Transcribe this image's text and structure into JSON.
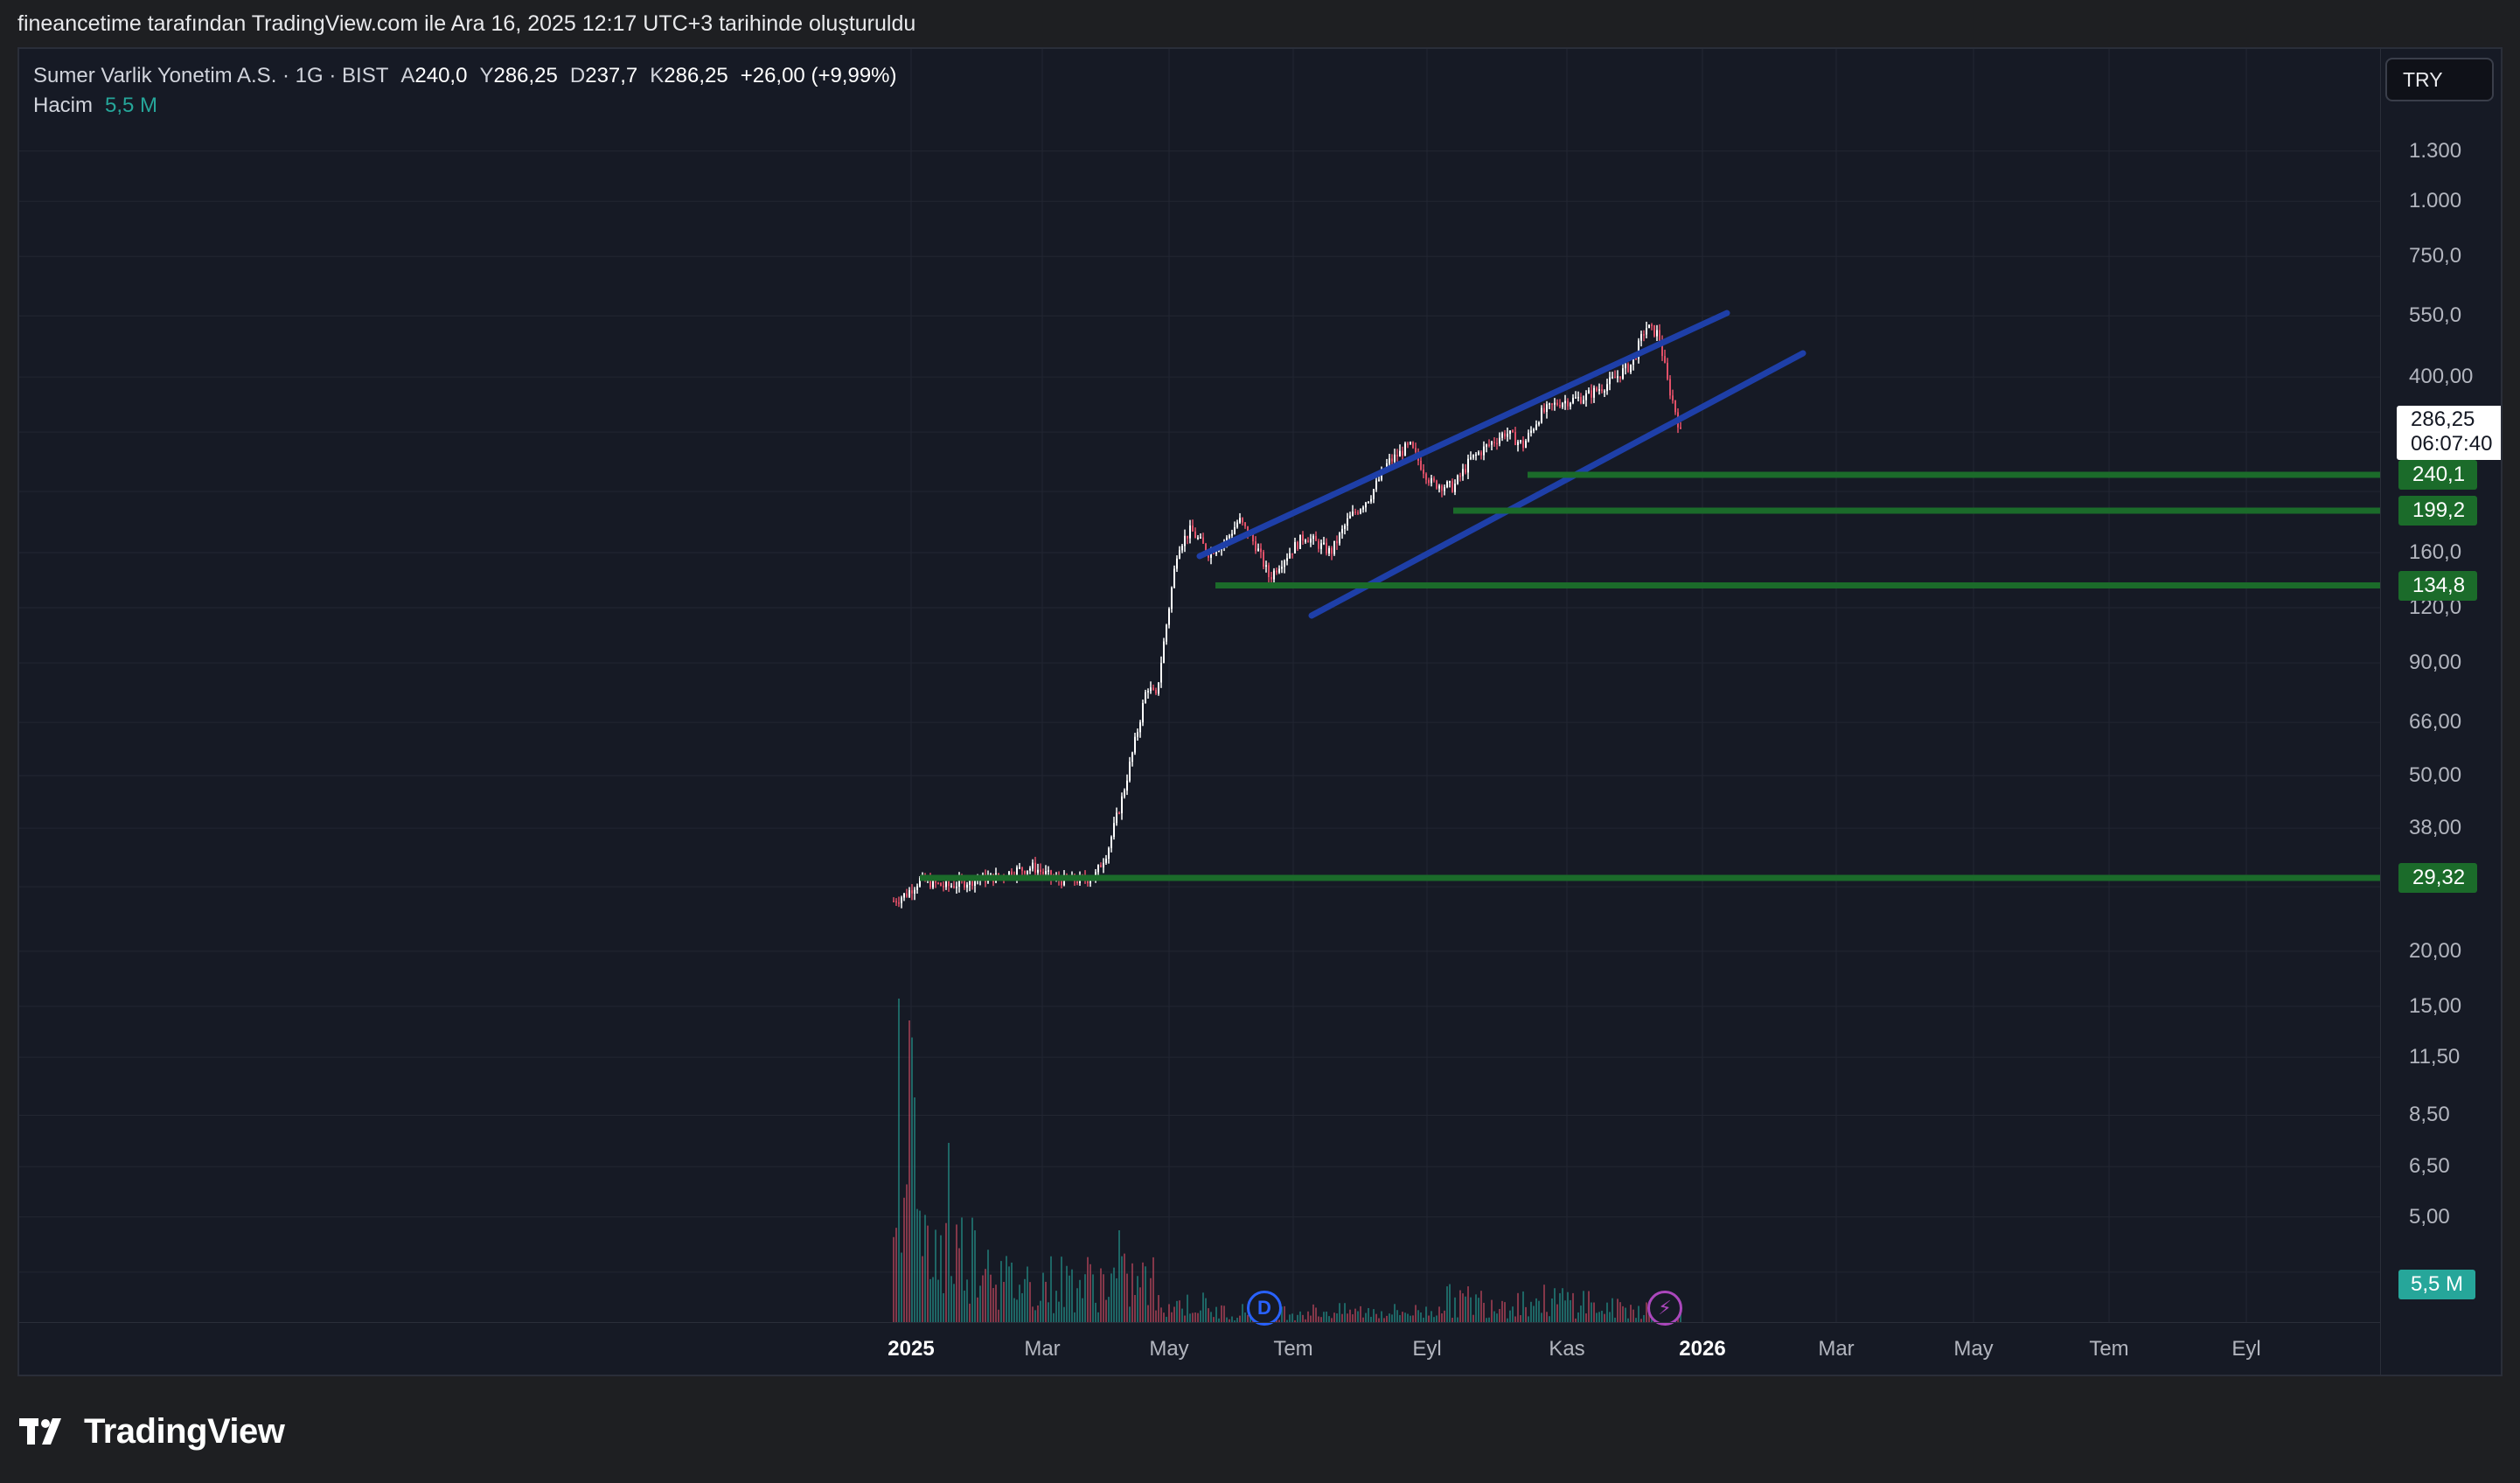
{
  "header": {
    "attribution": "fineancetime tarafından TradingView.com ile Ara 16, 2025 12:17 UTC+3 tarihinde oluşturuldu"
  },
  "legend": {
    "symbol": "Sumer Varlik Yonetim A.S. · 1G · BIST",
    "open_label": "A",
    "open": "240,0",
    "high_label": "Y",
    "high": "286,25",
    "low_label": "D",
    "low": "237,7",
    "close_label": "K",
    "close": "286,25",
    "change": "+26,00 (+9,99%)",
    "volume_label": "Hacim",
    "volume": "5,5 M"
  },
  "currency_button": "TRY",
  "price_axis": {
    "ticks": [
      "1.300",
      "1.000",
      "750,0",
      "550,0",
      "400,00",
      "160,0",
      "120,0",
      "90,00",
      "66,00",
      "50,00",
      "38,00",
      "20,00",
      "15,00",
      "11,50",
      "8,50",
      "6,50",
      "5,00"
    ],
    "levels": [
      {
        "label": "240,1",
        "value": 240.1
      },
      {
        "label": "199,2",
        "value": 199.2
      },
      {
        "label": "134,8",
        "value": 134.8
      },
      {
        "label": "29,32",
        "value": 29.32
      }
    ],
    "last_price": "286,25",
    "countdown": "06:07:40",
    "volume_badge": "5,5 M"
  },
  "time_axis": {
    "labels": [
      {
        "text": "2025",
        "bold": true
      },
      {
        "text": "Mar",
        "bold": false
      },
      {
        "text": "May",
        "bold": false
      },
      {
        "text": "Tem",
        "bold": false
      },
      {
        "text": "Eyl",
        "bold": false
      },
      {
        "text": "Kas",
        "bold": false
      },
      {
        "text": "2026",
        "bold": true
      },
      {
        "text": "Mar",
        "bold": false
      },
      {
        "text": "May",
        "bold": false
      },
      {
        "text": "Tem",
        "bold": false
      },
      {
        "text": "Eyl",
        "bold": false
      }
    ]
  },
  "events": {
    "dividend": "D",
    "earnings": "⚡"
  },
  "colors": {
    "background": "#161a25",
    "up": "#ffffff",
    "down": "#e05068",
    "channel": "#1e3fa8",
    "support": "#1b6b2a",
    "volume": "#26a69a"
  },
  "chart_data": {
    "type": "candlestick",
    "scale": "log",
    "symbol": "Sumer Varlik Yonetim A.S.",
    "interval": "1G",
    "exchange": "BIST",
    "currency": "TRY",
    "ylim": [
      3.75,
      1300
    ],
    "series": [
      {
        "x": "2025-01",
        "close": 28
      },
      {
        "x": "2025-02",
        "close": 30
      },
      {
        "x": "2025-03",
        "close": 30
      },
      {
        "x": "2025-04",
        "close": 75
      },
      {
        "x": "2025-05",
        "close": 175
      },
      {
        "x": "2025-06",
        "close": 175
      },
      {
        "x": "2025-07",
        "close": 150
      },
      {
        "x": "2025-08",
        "close": 270
      },
      {
        "x": "2025-09",
        "close": 230
      },
      {
        "x": "2025-10",
        "close": 380
      },
      {
        "x": "2025-11",
        "close": 520
      },
      {
        "x": "2025-12",
        "close": 286.25
      }
    ],
    "support_levels": [
      240.1,
      199.2,
      134.8,
      29.32
    ],
    "channel": {
      "upper": [
        {
          "x": "2025-05",
          "y": 185
        },
        {
          "x": "2026-01",
          "y": 650
        }
      ],
      "lower": [
        {
          "x": "2025-07",
          "y": 135
        },
        {
          "x": "2026-01",
          "y": 520
        }
      ]
    },
    "last_price": 286.25
  }
}
